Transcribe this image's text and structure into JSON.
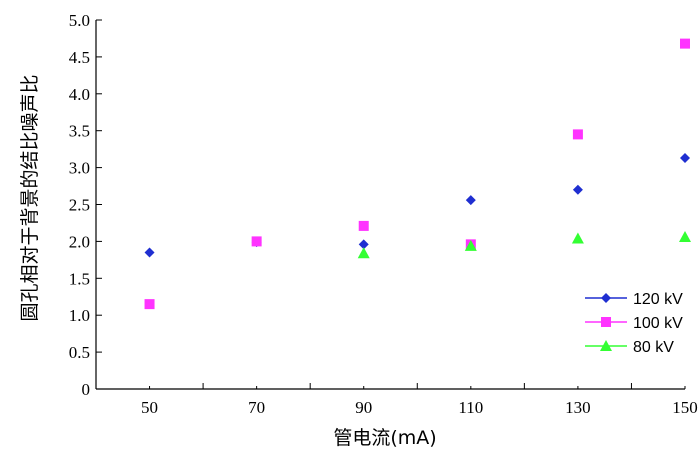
{
  "chart_data": {
    "type": "scatter",
    "title": "",
    "xlabel": "管电流(mA)",
    "ylabel": "圆孔相对于背景的结比噪声比",
    "x": [
      50,
      70,
      90,
      110,
      130,
      150
    ],
    "xticks": [
      "50",
      "70",
      "90",
      "110",
      "130",
      "150"
    ],
    "xlim": [
      40,
      150
    ],
    "ylim": [
      0,
      5.0
    ],
    "yticks": [
      "0",
      "0.5",
      "1.0",
      "1.5",
      "2.0",
      "2.5",
      "3.0",
      "3.5",
      "4.0",
      "4.5",
      "5.0"
    ],
    "grid": false,
    "legend_position": "bottom-right",
    "series": [
      {
        "name": "120 kV",
        "marker": "diamond",
        "color": "#1f2fd1",
        "values": [
          1.85,
          1.99,
          1.96,
          2.56,
          2.7,
          3.13
        ]
      },
      {
        "name": "100 kV",
        "marker": "square",
        "color": "#ff33ff",
        "values": [
          1.15,
          2.0,
          2.21,
          1.96,
          3.45,
          4.68
        ]
      },
      {
        "name": "80 kV",
        "marker": "triangle",
        "color": "#33ff33",
        "values": [
          null,
          null,
          1.84,
          1.94,
          2.04,
          2.06
        ]
      }
    ]
  }
}
